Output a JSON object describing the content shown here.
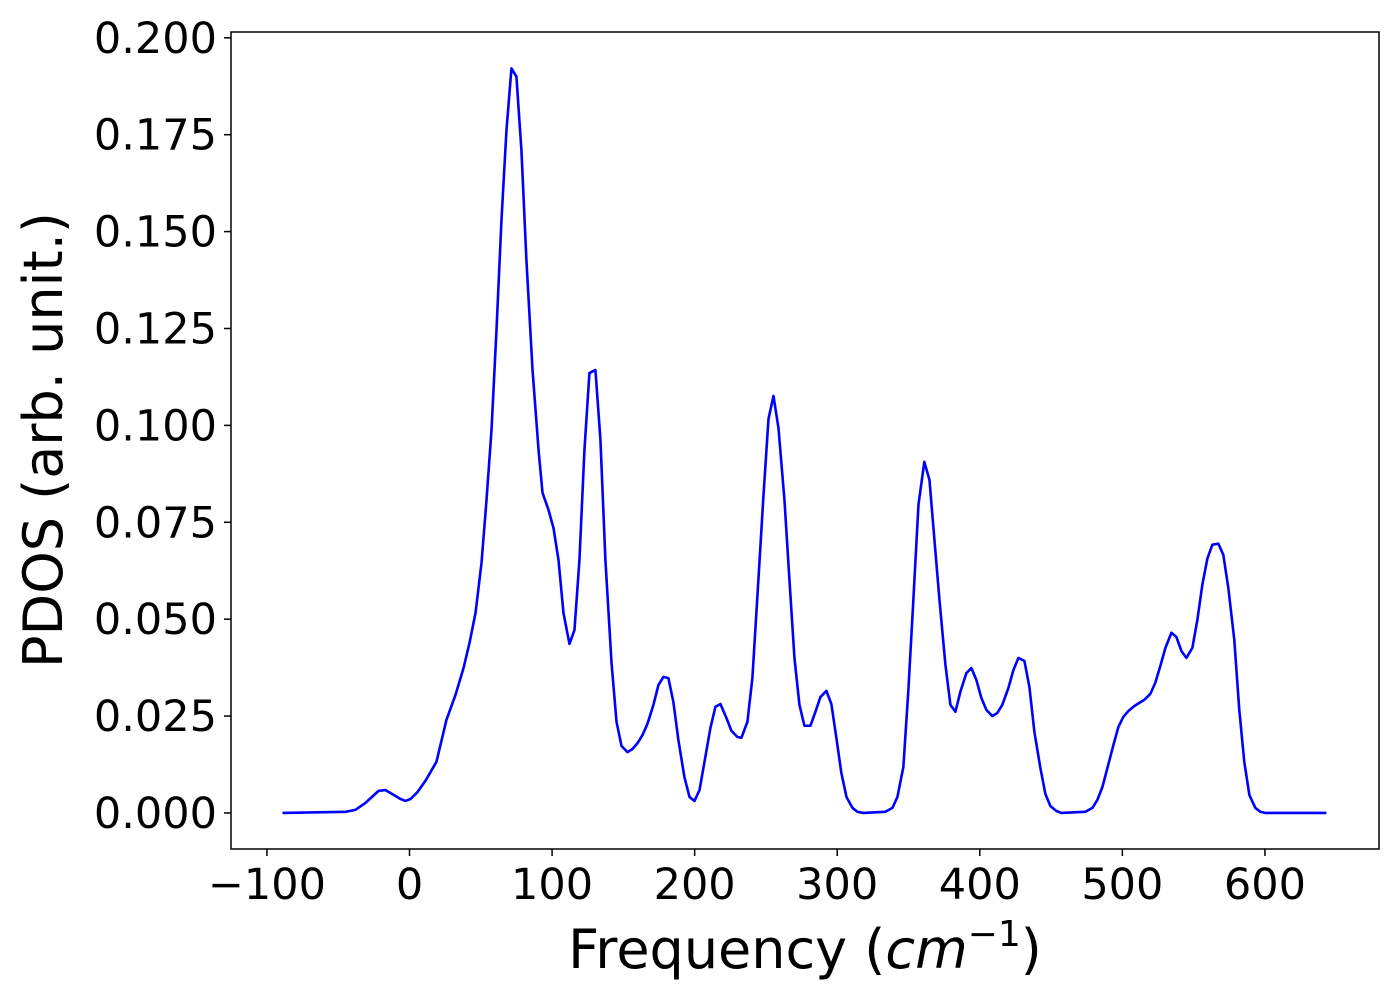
{
  "chart_data": {
    "type": "line",
    "xlabel": [
      "Frequency (",
      "cm",
      "−1",
      ")"
    ],
    "ylabel": "PDOS (arb. unit.)",
    "x": [
      -89.1,
      -44.9,
      -37.9,
      -30.9,
      -21.7,
      -16.8,
      -6.3,
      -2.8,
      0.7,
      5.6,
      11.2,
      18.9,
      25.9,
      32.3,
      37.9,
      42.1,
      46.3,
      50.5,
      54.0,
      57.5,
      61.0,
      64.5,
      68.0,
      71.5,
      75.0,
      78.5,
      82.0,
      86.3,
      90.5,
      93.3,
      97.5,
      101.0,
      104.5,
      108.0,
      112.2,
      115.7,
      119.2,
      122.7,
      126.2,
      130.4,
      133.9,
      137.4,
      141.7,
      145.2,
      148.7,
      152.9,
      156.4,
      159.9,
      163.4,
      166.9,
      171.1,
      174.6,
      178.1,
      181.6,
      185.1,
      188.6,
      192.8,
      196.4,
      199.9,
      203.4,
      206.9,
      211.1,
      214.6,
      218.1,
      222.3,
      225.8,
      230.0,
      232.8,
      237.0,
      240.5,
      244.7,
      248.2,
      251.8,
      255.3,
      258.8,
      263.0,
      266.5,
      270.0,
      273.5,
      277.0,
      281.2,
      284.7,
      288.2,
      292.4,
      295.9,
      299.4,
      302.9,
      306.5,
      310.7,
      314.2,
      318.4,
      333.8,
      338.7,
      342.2,
      346.4,
      349.9,
      353.4,
      357.0,
      361.1,
      364.7,
      368.2,
      371.7,
      375.9,
      379.4,
      382.9,
      386.4,
      390.6,
      394.1,
      397.6,
      401.1,
      404.6,
      408.8,
      412.3,
      415.8,
      420.1,
      423.6,
      427.1,
      431.3,
      434.8,
      438.3,
      442.5,
      446.0,
      449.5,
      453.7,
      457.2,
      474.1,
      479.0,
      482.5,
      486.0,
      489.5,
      493.7,
      497.2,
      500.7,
      504.2,
      508.4,
      511.9,
      515.4,
      519.6,
      523.1,
      526.6,
      530.2,
      534.4,
      537.9,
      541.4,
      544.9,
      549.1,
      552.6,
      556.1,
      559.6,
      563.1,
      567.3,
      570.8,
      574.3,
      578.5,
      582.0,
      585.5,
      589.1,
      593.3,
      596.8,
      600.3,
      643.1
    ],
    "series": [
      {
        "color": "#0000ff",
        "values": [
          0,
          0.0003,
          0.0008,
          0.0026,
          0.0057,
          0.0059,
          0.0036,
          0.0031,
          0.0036,
          0.0054,
          0.0083,
          0.0132,
          0.024,
          0.0305,
          0.0374,
          0.0439,
          0.0516,
          0.0645,
          0.0807,
          0.0987,
          0.1245,
          0.1529,
          0.1761,
          0.1921,
          0.19,
          0.171,
          0.1427,
          0.1143,
          0.0937,
          0.0826,
          0.0782,
          0.0735,
          0.0653,
          0.0516,
          0.0436,
          0.0472,
          0.0653,
          0.0937,
          0.1135,
          0.1143,
          0.0964,
          0.0653,
          0.0387,
          0.0235,
          0.0173,
          0.0157,
          0.0165,
          0.018,
          0.0201,
          0.023,
          0.0279,
          0.033,
          0.0351,
          0.0348,
          0.0286,
          0.0188,
          0.0093,
          0.0041,
          0.0031,
          0.0059,
          0.0132,
          0.022,
          0.0274,
          0.0281,
          0.0245,
          0.0212,
          0.0196,
          0.0194,
          0.0235,
          0.0348,
          0.0601,
          0.0815,
          0.1017,
          0.1076,
          0.0993,
          0.0807,
          0.0601,
          0.04,
          0.0279,
          0.0225,
          0.0225,
          0.0261,
          0.0299,
          0.0315,
          0.0281,
          0.0194,
          0.0103,
          0.0041,
          0.0013,
          0.0003,
          0,
          0.0003,
          0.0013,
          0.0041,
          0.0119,
          0.0317,
          0.055,
          0.0796,
          0.0906,
          0.0859,
          0.0704,
          0.055,
          0.0382,
          0.0279,
          0.0261,
          0.0313,
          0.0361,
          0.0374,
          0.0343,
          0.0297,
          0.0266,
          0.025,
          0.0258,
          0.0279,
          0.0323,
          0.0369,
          0.04,
          0.0392,
          0.0325,
          0.0209,
          0.0116,
          0.0049,
          0.0018,
          0.0005,
          0,
          0.0003,
          0.0013,
          0.0034,
          0.0067,
          0.0116,
          0.0175,
          0.0222,
          0.0248,
          0.0263,
          0.0276,
          0.0284,
          0.0292,
          0.0307,
          0.0336,
          0.0379,
          0.0426,
          0.0465,
          0.0454,
          0.0418,
          0.04,
          0.0426,
          0.0498,
          0.0589,
          0.0656,
          0.0692,
          0.0695,
          0.0666,
          0.0581,
          0.0447,
          0.0266,
          0.0132,
          0.0046,
          0.0013,
          0.0003,
          0,
          0
        ]
      }
    ],
    "xlim": [
      -125.2,
      680
    ],
    "ylim": [
      -0.0093,
      0.2015
    ],
    "xticks": [
      {
        "value": -100,
        "label": "−100"
      },
      0,
      100,
      200,
      300,
      400,
      500,
      600
    ],
    "yticks": [
      {
        "value": 0,
        "label": "0.000"
      },
      {
        "value": 0.025,
        "label": "0.025"
      },
      {
        "value": 0.05,
        "label": "0.050"
      },
      {
        "value": 0.075,
        "label": "0.075"
      },
      {
        "value": 0.1,
        "label": "0.100"
      },
      {
        "value": 0.125,
        "label": "0.125"
      },
      {
        "value": 0.15,
        "label": "0.150"
      },
      {
        "value": 0.175,
        "label": "0.175"
      },
      {
        "value": 0.2,
        "label": "0.200"
      }
    ],
    "grid": false
  }
}
